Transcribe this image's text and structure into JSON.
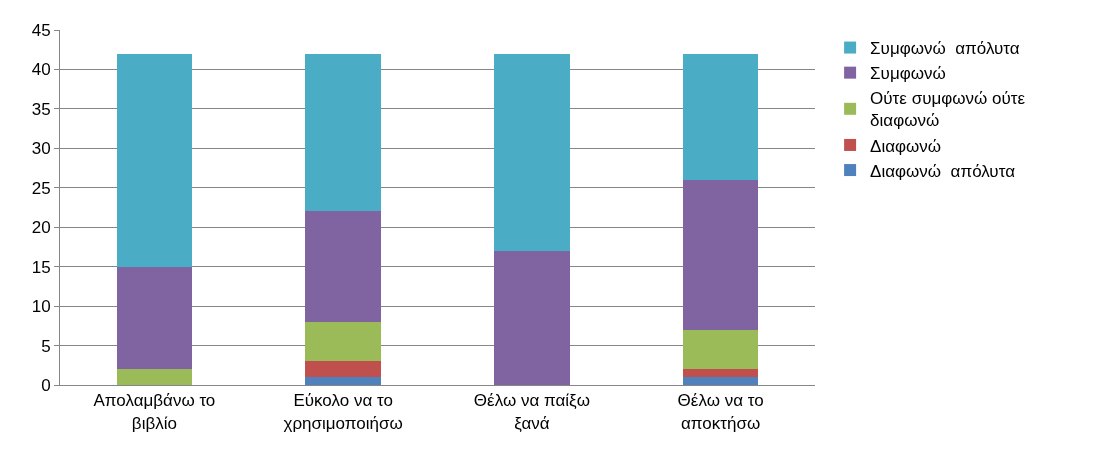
{
  "chart_data": {
    "type": "bar",
    "stacked": true,
    "categories": [
      "Απολαμβάνω το βιβλίο",
      "Εύκολο να το χρησιμοποιήσω",
      "Θέλω να παίξω ξανά",
      "Θέλω να το αποκτήσω"
    ],
    "series": [
      {
        "name": "Διαφωνώ  απόλυτα",
        "color": "#4f81bd",
        "values": [
          0,
          1,
          0,
          1
        ]
      },
      {
        "name": "Διαφωνώ",
        "color": "#c0504d",
        "values": [
          0,
          2,
          0,
          1
        ]
      },
      {
        "name": "Ούτε συμφωνώ ούτε διαφωνώ",
        "color": "#9bbb59",
        "values": [
          2,
          5,
          0,
          5
        ]
      },
      {
        "name": "Συμφωνώ",
        "color": "#8064a2",
        "values": [
          13,
          14,
          17,
          19
        ]
      },
      {
        "name": "Συμφωνώ  απόλυτα",
        "color": "#4bacc6",
        "values": [
          27,
          20,
          25,
          16
        ]
      }
    ],
    "ylim": [
      0,
      45
    ],
    "yticks": [
      0,
      5,
      10,
      15,
      20,
      25,
      30,
      35,
      40,
      45
    ],
    "grid": "y",
    "legend": "right"
  }
}
